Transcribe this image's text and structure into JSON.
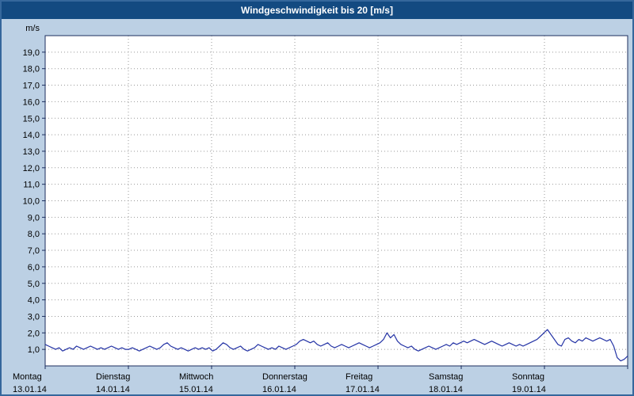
{
  "title": "Windgeschwindigkeit bis 20 [m/s]",
  "colors": {
    "window_background": "#bcd0e4",
    "window_border": "#35679c",
    "titlebar_background": "#134a81",
    "titlebar_text": "#ffffff",
    "plot_background": "#ffffff",
    "grid": "#999999",
    "axis": "#1c2e5e",
    "line": "#2433a5",
    "label_text": "#000000"
  },
  "chart_data": {
    "type": "line",
    "title": "Windgeschwindigkeit bis 20 [m/s]",
    "xlabel": "",
    "ylabel": "m/s",
    "ylim": [
      0,
      20
    ],
    "ytick_step": 1,
    "ytick_labels": [
      "1,0",
      "2,0",
      "3,0",
      "4,0",
      "5,0",
      "6,0",
      "7,0",
      "8,0",
      "9,0",
      "10,0",
      "11,0",
      "12,0",
      "13,0",
      "14,0",
      "15,0",
      "16,0",
      "17,0",
      "18,0",
      "19,0"
    ],
    "grid": true,
    "legend_position": "none",
    "days": [
      {
        "name": "Montag",
        "date": "13.01.14"
      },
      {
        "name": "Dienstag",
        "date": "14.01.14"
      },
      {
        "name": "Mittwoch",
        "date": "15.01.14"
      },
      {
        "name": "Donnerstag",
        "date": "16.01.14"
      },
      {
        "name": "Freitag",
        "date": "17.01.14"
      },
      {
        "name": "Samstag",
        "date": "18.01.14"
      },
      {
        "name": "Sonntag",
        "date": "19.01.14"
      }
    ],
    "sampling": "hourly",
    "series": [
      {
        "name": "Windgeschwindigkeit",
        "unit": "m/s",
        "values": [
          1.3,
          1.2,
          1.1,
          1.0,
          1.1,
          0.9,
          1.0,
          1.1,
          1.0,
          1.2,
          1.1,
          1.0,
          1.1,
          1.2,
          1.1,
          1.0,
          1.1,
          1.0,
          1.1,
          1.2,
          1.1,
          1.0,
          1.1,
          1.0,
          1.0,
          1.1,
          1.0,
          0.9,
          1.0,
          1.1,
          1.2,
          1.1,
          1.0,
          1.1,
          1.3,
          1.4,
          1.2,
          1.1,
          1.0,
          1.1,
          1.0,
          0.9,
          1.0,
          1.1,
          1.0,
          1.1,
          1.0,
          1.1,
          0.9,
          1.0,
          1.2,
          1.4,
          1.3,
          1.1,
          1.0,
          1.1,
          1.2,
          1.0,
          0.9,
          1.0,
          1.1,
          1.3,
          1.2,
          1.1,
          1.0,
          1.1,
          1.0,
          1.2,
          1.1,
          1.0,
          1.1,
          1.2,
          1.3,
          1.5,
          1.6,
          1.5,
          1.4,
          1.5,
          1.3,
          1.2,
          1.3,
          1.4,
          1.2,
          1.1,
          1.2,
          1.3,
          1.2,
          1.1,
          1.2,
          1.3,
          1.4,
          1.3,
          1.2,
          1.1,
          1.2,
          1.3,
          1.4,
          1.6,
          2.0,
          1.7,
          1.9,
          1.5,
          1.3,
          1.2,
          1.1,
          1.2,
          1.0,
          0.9,
          1.0,
          1.1,
          1.2,
          1.1,
          1.0,
          1.1,
          1.2,
          1.3,
          1.2,
          1.4,
          1.3,
          1.4,
          1.5,
          1.4,
          1.5,
          1.6,
          1.5,
          1.4,
          1.3,
          1.4,
          1.5,
          1.4,
          1.3,
          1.2,
          1.3,
          1.4,
          1.3,
          1.2,
          1.3,
          1.2,
          1.3,
          1.4,
          1.5,
          1.6,
          1.8,
          2.0,
          2.2,
          1.9,
          1.6,
          1.3,
          1.2,
          1.6,
          1.7,
          1.5,
          1.4,
          1.6,
          1.5,
          1.7,
          1.6,
          1.5,
          1.6,
          1.7,
          1.6,
          1.5,
          1.6,
          1.2,
          0.5,
          0.3,
          0.4,
          0.6
        ]
      }
    ]
  }
}
